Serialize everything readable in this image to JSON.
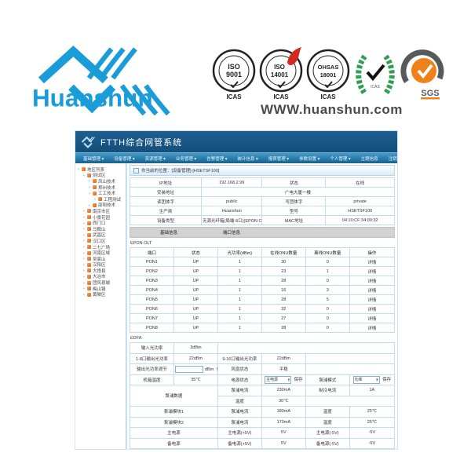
{
  "banner": {
    "logo_text": "Huanshun",
    "website": "WWW.huanshun.com",
    "badges": {
      "iso9001": {
        "line1": "ISO",
        "line2": "9001",
        "sub": "ICAS"
      },
      "iso14001": {
        "line1": "ISO",
        "line2": "14001",
        "sub": "ICAS"
      },
      "ohsas": {
        "line1": "OHSAS",
        "line2": "18001",
        "sub": "ICAS"
      },
      "wreath": {
        "sub": "ICAS"
      },
      "sgs": {
        "label": "SGS"
      }
    }
  },
  "app": {
    "title": "FTTH综合网管系统",
    "menu": {
      "items": [
        {
          "label": "基础管理",
          "caret": true
        },
        {
          "label": "设备管理",
          "caret": true
        },
        {
          "label": "资源管理",
          "caret": true
        },
        {
          "label": "业务管理",
          "caret": true
        },
        {
          "label": "告警管理",
          "caret": true
        },
        {
          "label": "统计信息",
          "caret": true
        },
        {
          "label": "报表管理",
          "caret": true
        },
        {
          "label": "参数设置",
          "caret": true
        },
        {
          "label": "个人管理",
          "caret": true
        },
        {
          "label": "主题信息",
          "caret": false
        },
        {
          "label": "注销",
          "caret": false
        }
      ]
    },
    "sidebar": {
      "items": [
        {
          "label": "地区列表",
          "level": 0
        },
        {
          "label": "测试区",
          "level": 1
        },
        {
          "label": "凤山技术",
          "level": 2
        },
        {
          "label": "郑州技术",
          "level": 2
        },
        {
          "label": "工工技术",
          "level": 2
        },
        {
          "label": "工程测试",
          "level": 3
        },
        {
          "label": "邵阳技术",
          "level": 2
        },
        {
          "label": "南京市区",
          "level": 1
        },
        {
          "label": "小景花园",
          "level": 1
        },
        {
          "label": "西门口",
          "level": 1
        },
        {
          "label": "马鞍山",
          "level": 1
        },
        {
          "label": "武昌区",
          "level": 1
        },
        {
          "label": "汉口区",
          "level": 1
        },
        {
          "label": "二七广场",
          "level": 1
        },
        {
          "label": "河南区域",
          "level": 1
        },
        {
          "label": "吴家山",
          "level": 1
        },
        {
          "label": "汉阳区",
          "level": 1
        },
        {
          "label": "大悟县",
          "level": 1
        },
        {
          "label": "大冶市",
          "level": 1
        },
        {
          "label": "团风县城",
          "level": 1
        },
        {
          "label": "梅山镇",
          "level": 1
        },
        {
          "label": "黄陂区",
          "level": 1
        }
      ]
    },
    "breadcrumb": "你当前的位置：[设备管理]-[HSETSF100]",
    "device_info": {
      "ip_label": "IP地址",
      "ip_value": "192.168.2.99",
      "status_label": "状态",
      "status_value": "在线",
      "addr_label": "安装地址",
      "addr_value": "广电大厦一楼",
      "read_label": "读团体字",
      "read_value": "public",
      "write_label": "写团体字",
      "write_value": "private",
      "vendor_label": "生产商",
      "vendor_value": "Huanshun",
      "model_label": "型号",
      "model_value": "HSETSF100",
      "type_label": "设备类型",
      "type_value": "无源光纤箱(局端-8口)(EPON OLT- EDFA)",
      "mac_label": "MAC地址",
      "mac_value": "04:10:CF:34:00:32"
    },
    "tabs": {
      "tab1": "基础信息",
      "tab2": "端口信息"
    },
    "epon": {
      "title": "EPON OLT",
      "headers": {
        "port": "端口",
        "status": "状态",
        "power": "光功率(dBm)",
        "online": "在线ONU数量",
        "offline": "离线ONU数量",
        "action": "操作"
      },
      "rows": [
        {
          "port": "PON1",
          "status": "UP",
          "power": "1",
          "online": "30",
          "offline": "0",
          "action": "详情"
        },
        {
          "port": "PON2",
          "status": "UP",
          "power": "1",
          "online": "23",
          "offline": "1",
          "action": "详情"
        },
        {
          "port": "PON3",
          "status": "UP",
          "power": "1",
          "online": "28",
          "offline": "0",
          "action": "详情"
        },
        {
          "port": "PON4",
          "status": "UP",
          "power": "1",
          "online": "16",
          "offline": "3",
          "action": "详情"
        },
        {
          "port": "PON5",
          "status": "UP",
          "power": "1",
          "online": "28",
          "offline": "5",
          "action": "详情"
        },
        {
          "port": "PON6",
          "status": "UP",
          "power": "1",
          "online": "32",
          "offline": "0",
          "action": "详情"
        },
        {
          "port": "PON7",
          "status": "UP",
          "power": "1",
          "online": "27",
          "offline": "0",
          "action": "详情"
        },
        {
          "port": "PON8",
          "status": "UP",
          "power": "1",
          "online": "28",
          "offline": "0",
          "action": "详情"
        }
      ]
    },
    "edfa": {
      "title": "EDFA",
      "input_power_label": "输入光功率",
      "input_power_value": "3dBm",
      "out18_label": "1-8口输出光功率",
      "out18_value": "22dBm",
      "out916_label": "9-16口输出光功率",
      "out916_value": "22dBm",
      "adjust_label": "输出光功率调节",
      "adjust_unit": "dBm",
      "save_label": "保存",
      "fan_label": "风扇状态",
      "fan_value": "平稳",
      "temp_label": "机箱温度",
      "temp_value": "35℃",
      "power_state_label": "电源状态",
      "power_state_value": "主电源",
      "pump_mode_label": "泵浦模式",
      "pump_mode_value": "功率",
      "pump_data_label": "泵浦数据",
      "pump_current_label": "泵浦电流",
      "pump_current_value": "230mA",
      "cool_current_label": "制冷电流",
      "cool_current_value": "1A",
      "pump_temp_label": "温度",
      "pump_temp_value": "30℃",
      "pump1_label": "泵浦模块1",
      "pump1_current_label": "泵浦电流",
      "pump1_current_value": "180mA",
      "pump1_temp_label": "温度",
      "pump1_temp_value": "25℃",
      "pump2_label": "泵浦模块2",
      "pump2_current_label": "泵浦电流",
      "pump2_current_value": "170mA",
      "pump2_temp_label": "温度",
      "pump2_temp_value": "25℃",
      "main_power_label": "主电源",
      "main_p5_label": "主电源(+5V)",
      "main_p5_value": "5V",
      "main_n5_label": "主电源(-5V)",
      "main_n5_value": "-5V",
      "backup_power_label": "备电源",
      "backup_p5_label": "备电源(+5V)",
      "backup_p5_value": "5V",
      "backup_n5_label": "备电源(-5V)",
      "backup_n5_value": "-5V"
    }
  }
}
